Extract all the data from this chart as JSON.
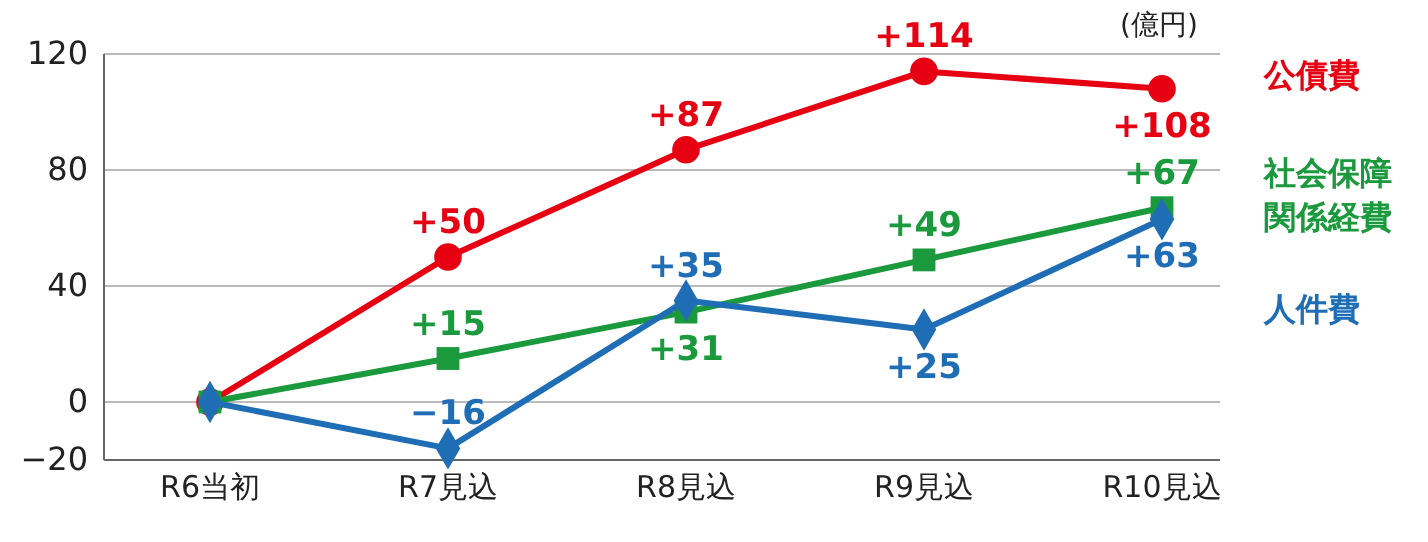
{
  "chart_data": {
    "type": "line",
    "categories": [
      "R6当初",
      "R7見込",
      "R8見込",
      "R9見込",
      "R10見込"
    ],
    "ylim": [
      -20,
      120
    ],
    "yticks": [
      {
        "value": -20,
        "label": "−20"
      },
      0,
      40,
      80,
      120
    ],
    "grid": "y",
    "legend": "right",
    "annotations": [
      "(億円)"
    ],
    "series": [
      {
        "name": "公債費",
        "color": "#e60012",
        "marker": "circle",
        "values": [
          0,
          50,
          87,
          114,
          108
        ],
        "value_labels": [
          null,
          "+50",
          "+87",
          "+114",
          "+108"
        ]
      },
      {
        "name": "社会保障関係経費",
        "color": "#1a9a3c",
        "marker": "square",
        "values": [
          0,
          15,
          31,
          49,
          67
        ],
        "value_labels": [
          null,
          "+15",
          "+31",
          "+49",
          "+67"
        ]
      },
      {
        "name": "人件費",
        "color": "#1f6db5",
        "marker": "diamond",
        "values": [
          0,
          -16,
          35,
          25,
          63
        ],
        "value_labels": [
          null,
          "−16",
          "+35",
          "+25",
          "+63"
        ]
      }
    ]
  }
}
